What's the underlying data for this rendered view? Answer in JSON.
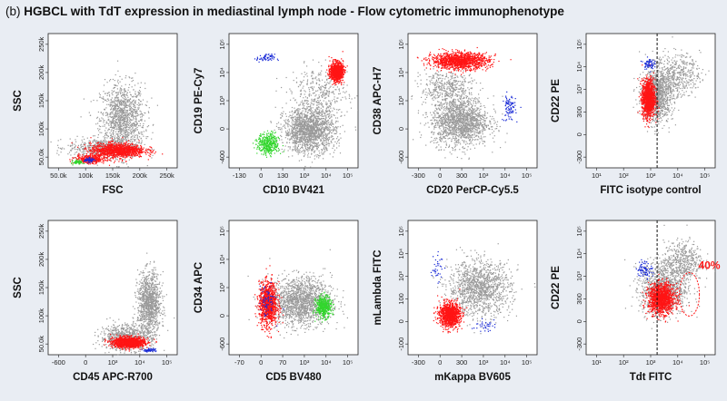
{
  "figure": {
    "panel_label": "(b)",
    "title": "HGBCL with TdT expression in mediastinal lymph node - Flow cytometric immunophenotype"
  },
  "colors": {
    "background": "#e9edf3",
    "gray_population": "#9a9a9a",
    "red_population": "#ff1414",
    "blue_population": "#1a2bd6",
    "green_population": "#33d62e",
    "gate_line": "#111111"
  },
  "chart_data": [
    {
      "type": "scatter",
      "panel": "row1-col1",
      "xlabel": "FSC",
      "ylabel": "SSC",
      "x_ticks": [
        "50.0k",
        "100k",
        "150k",
        "200k",
        "250k"
      ],
      "y_ticks": [
        "50.0k",
        "100k",
        "150k",
        "200k",
        "250k"
      ],
      "xlim": [
        0,
        262
      ],
      "ylim": [
        0,
        262
      ],
      "series": [
        {
          "name": "gray",
          "color": "#9a9a9a",
          "count": 1800,
          "clusters": [
            [
              150,
              95,
              45,
              70,
              0.7
            ],
            [
              110,
              40,
              70,
              18,
              0.3
            ]
          ]
        },
        {
          "name": "red",
          "color": "#ff1414",
          "count": 1500,
          "clusters": [
            [
              140,
              35,
              55,
              14,
              0.75
            ],
            [
              85,
              18,
              30,
              8,
              0.25
            ]
          ]
        },
        {
          "name": "green",
          "color": "#33d62e",
          "count": 70,
          "clusters": [
            [
              60,
              12,
              10,
              4,
              1
            ]
          ]
        },
        {
          "name": "blue",
          "color": "#1a2bd6",
          "count": 70,
          "clusters": [
            [
              82,
              16,
              10,
              4,
              1
            ]
          ]
        }
      ]
    },
    {
      "type": "scatter",
      "panel": "row1-col2",
      "xlabel": "CD10 BV421",
      "ylabel": "CD19 PE-Cy7",
      "x_ticks": [
        "-130",
        "0",
        "130",
        "10³",
        "10⁴",
        "10⁵"
      ],
      "y_ticks": [
        "-400",
        "0",
        "10³",
        "10⁴",
        "10⁵"
      ],
      "xlim": [
        0,
        100
      ],
      "ylim": [
        0,
        100
      ],
      "series": [
        {
          "name": "gray",
          "color": "#9a9a9a",
          "count": 2000,
          "clusters": [
            [
              62,
              28,
              20,
              16,
              0.8
            ],
            [
              70,
              55,
              22,
              20,
              0.2
            ]
          ]
        },
        {
          "name": "red",
          "color": "#ff1414",
          "count": 900,
          "clusters": [
            [
              83,
              72,
              5,
              7,
              1
            ]
          ]
        },
        {
          "name": "green",
          "color": "#33d62e",
          "count": 400,
          "clusters": [
            [
              30,
              18,
              8,
              8,
              1
            ]
          ]
        },
        {
          "name": "blue",
          "color": "#1a2bd6",
          "count": 60,
          "clusters": [
            [
              28,
              82,
              7,
              3,
              1
            ]
          ]
        }
      ]
    },
    {
      "type": "scatter",
      "panel": "row1-col3",
      "xlabel": "CD20 PerCP-Cy5.5",
      "ylabel": "CD38 APC-H7",
      "x_ticks": [
        "-300",
        "0",
        "300",
        "10³",
        "10⁴",
        "10⁵"
      ],
      "y_ticks": [
        "-600",
        "0",
        "10³",
        "10⁴",
        "10⁵"
      ],
      "xlim": [
        0,
        100
      ],
      "ylim": [
        0,
        100
      ],
      "series": [
        {
          "name": "gray",
          "color": "#9a9a9a",
          "count": 2000,
          "clusters": [
            [
              40,
              35,
              22,
              18,
              0.8
            ],
            [
              30,
              60,
              20,
              14,
              0.2
            ]
          ]
        },
        {
          "name": "red",
          "color": "#ff1414",
          "count": 1300,
          "clusters": [
            [
              40,
              80,
              22,
              6,
              1
            ]
          ]
        },
        {
          "name": "blue",
          "color": "#1a2bd6",
          "count": 90,
          "clusters": [
            [
              78,
              45,
              5,
              10,
              1
            ]
          ]
        }
      ]
    },
    {
      "type": "scatter",
      "panel": "row1-col4",
      "xlabel": "FITC isotype control",
      "ylabel": "CD22 PE",
      "x_ticks": [
        "10¹",
        "10²",
        "10³",
        "10⁴",
        "10⁵"
      ],
      "y_ticks": [
        "-300",
        "0",
        "300",
        "10³",
        "10⁴",
        "10⁵"
      ],
      "xlim": [
        0,
        100
      ],
      "ylim": [
        0,
        100
      ],
      "gate_x": 55,
      "series": [
        {
          "name": "gray",
          "color": "#9a9a9a",
          "count": 1500,
          "clusters": [
            [
              55,
              55,
              12,
              20,
              0.7
            ],
            [
              70,
              70,
              18,
              15,
              0.3
            ]
          ]
        },
        {
          "name": "red",
          "color": "#ff1414",
          "count": 1300,
          "clusters": [
            [
              48,
              52,
              5,
              14,
              1
            ]
          ]
        },
        {
          "name": "blue",
          "color": "#1a2bd6",
          "count": 70,
          "clusters": [
            [
              48,
              78,
              4,
              4,
              1
            ]
          ]
        }
      ]
    },
    {
      "type": "scatter",
      "panel": "row2-col1",
      "xlabel": "CD45 APC-R700",
      "ylabel": "SSC",
      "x_ticks": [
        "-600",
        "0",
        "10³",
        "10⁴",
        "10⁵"
      ],
      "y_ticks": [
        "50.0k",
        "100k",
        "150k",
        "200k",
        "250k"
      ],
      "xlim": [
        0,
        100
      ],
      "ylim": [
        0,
        262
      ],
      "series": [
        {
          "name": "gray",
          "color": "#9a9a9a",
          "count": 1800,
          "clusters": [
            [
              78,
              100,
              9,
              60,
              0.6
            ],
            [
              60,
              35,
              20,
              25,
              0.4
            ]
          ]
        },
        {
          "name": "red",
          "color": "#ff1414",
          "count": 1300,
          "clusters": [
            [
              62,
              25,
              12,
              10,
              1
            ]
          ]
        },
        {
          "name": "blue",
          "color": "#1a2bd6",
          "count": 60,
          "clusters": [
            [
              78,
              10,
              5,
              3,
              1
            ]
          ]
        }
      ]
    },
    {
      "type": "scatter",
      "panel": "row2-col2",
      "xlabel": "CD5 BV480",
      "ylabel": "CD34 APC",
      "x_ticks": [
        "-70",
        "0",
        "70",
        "10³",
        "10⁴",
        "10⁵"
      ],
      "y_ticks": [
        "-600",
        "0",
        "10³",
        "10⁴",
        "10⁵"
      ],
      "xlim": [
        0,
        100
      ],
      "ylim": [
        0,
        100
      ],
      "series": [
        {
          "name": "gray",
          "color": "#9a9a9a",
          "count": 1600,
          "clusters": [
            [
              55,
              40,
              24,
              18,
              1
            ]
          ]
        },
        {
          "name": "red",
          "color": "#ff1414",
          "count": 1100,
          "clusters": [
            [
              30,
              38,
              7,
              16,
              1
            ]
          ]
        },
        {
          "name": "blue",
          "color": "#1a2bd6",
          "count": 70,
          "clusters": [
            [
              29,
              40,
              6,
              12,
              1
            ]
          ]
        },
        {
          "name": "green",
          "color": "#33d62e",
          "count": 450,
          "clusters": [
            [
              73,
              36,
              6,
              8,
              1
            ]
          ]
        }
      ]
    },
    {
      "type": "scatter",
      "panel": "row2-col3",
      "xlabel": "mKappa BV605",
      "ylabel": "mLambda FITC",
      "x_ticks": [
        "-300",
        "0",
        "300",
        "10³",
        "10⁴",
        "10⁵"
      ],
      "y_ticks": [
        "-100",
        "0",
        "100",
        "10³",
        "10⁴",
        "10⁵"
      ],
      "xlim": [
        0,
        100
      ],
      "ylim": [
        0,
        100
      ],
      "series": [
        {
          "name": "gray",
          "color": "#9a9a9a",
          "count": 1300,
          "clusters": [
            [
              55,
              50,
              24,
              20,
              1
            ]
          ]
        },
        {
          "name": "red",
          "color": "#ff1414",
          "count": 1100,
          "clusters": [
            [
              32,
              30,
              8,
              9,
              1
            ]
          ]
        },
        {
          "name": "blue",
          "color": "#1a2bd6",
          "count": 70,
          "clusters": [
            [
              22,
              65,
              5,
              10,
              0.5
            ],
            [
              58,
              22,
              8,
              4,
              0.5
            ]
          ]
        }
      ]
    },
    {
      "type": "scatter",
      "panel": "row2-col4",
      "xlabel": "Tdt FITC",
      "ylabel": "CD22 PE",
      "x_ticks": [
        "10¹",
        "10²",
        "10³",
        "10⁴",
        "10⁵"
      ],
      "y_ticks": [
        "-300",
        "0",
        "300",
        "10³",
        "10⁴",
        "10⁵"
      ],
      "xlim": [
        0,
        100
      ],
      "ylim": [
        0,
        100
      ],
      "gate_x": 55,
      "annotation": "40%",
      "series": [
        {
          "name": "gray",
          "color": "#9a9a9a",
          "count": 1500,
          "clusters": [
            [
              60,
              50,
              18,
              20,
              0.7
            ],
            [
              75,
              70,
              15,
              15,
              0.3
            ]
          ]
        },
        {
          "name": "red",
          "color": "#ff1414",
          "count": 1300,
          "clusters": [
            [
              58,
              42,
              10,
              11,
              1
            ]
          ]
        },
        {
          "name": "blue",
          "color": "#1a2bd6",
          "count": 80,
          "clusters": [
            [
              45,
              64,
              6,
              6,
              1
            ]
          ]
        }
      ]
    }
  ]
}
